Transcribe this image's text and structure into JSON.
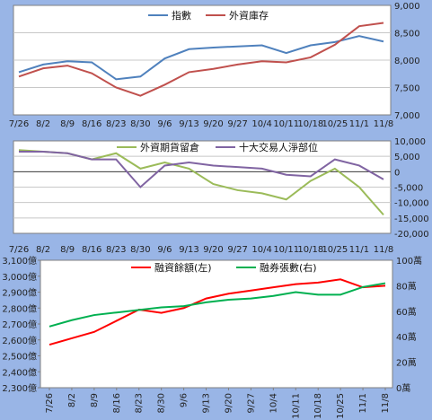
{
  "chart_data": [
    {
      "type": "line",
      "x": [
        "7/26",
        "8/2",
        "8/9",
        "8/16",
        "8/23",
        "8/30",
        "9/6",
        "9/13",
        "9/20",
        "9/27",
        "10/4",
        "10/11",
        "10/18",
        "10/25",
        "11/1",
        "11/8"
      ],
      "x_labels": [
        "7/26",
        "8/2",
        "8/9",
        "8/16",
        "8/23",
        "8/30",
        "9/6",
        "9/13",
        "9/20",
        "9/27",
        "10/4",
        "10/11",
        "10/18",
        "10/25",
        "11/1",
        "11/8"
      ],
      "y_ticks": [
        "7,000",
        "7,500",
        "8,000",
        "8,500",
        "9,000"
      ],
      "ylim": [
        7000,
        9000
      ],
      "legend_position": "top-center",
      "series": [
        {
          "name": "指數",
          "color": "#4f81bd",
          "values": [
            7780,
            7920,
            7980,
            7960,
            7650,
            7700,
            8030,
            8200,
            8230,
            8250,
            8270,
            8130,
            8270,
            8330,
            8440,
            8340
          ]
        },
        {
          "name": "外資庫存",
          "color": "#c0504d",
          "values": [
            7700,
            7850,
            7900,
            7760,
            7500,
            7350,
            7550,
            7780,
            7840,
            7920,
            7980,
            7960,
            8050,
            8280,
            8620,
            8680
          ]
        }
      ]
    },
    {
      "type": "line",
      "x": [
        "7/26",
        "8/2",
        "8/9",
        "8/16",
        "8/23",
        "8/30",
        "9/6",
        "9/13",
        "9/20",
        "9/27",
        "10/4",
        "10/11",
        "10/18",
        "10/25",
        "11/1",
        "11/8"
      ],
      "x_labels": [
        "7/26",
        "8/2",
        "8/9",
        "8/16",
        "8/23",
        "8/30",
        "9/6",
        "9/13",
        "9/20",
        "9/27",
        "10/4",
        "10/11",
        "10/18",
        "10/25",
        "11/1",
        "11/8"
      ],
      "y_ticks": [
        "10,000",
        "5,000",
        "0",
        "-5,000",
        "-10,000",
        "-15,000",
        "-20,000"
      ],
      "ylim": [
        -20000,
        10000
      ],
      "legend_position": "top-center",
      "series": [
        {
          "name": "外資期貨留倉",
          "color": "#9bbb59",
          "values": [
            7000,
            6500,
            6000,
            4000,
            6000,
            1000,
            3000,
            1000,
            -4000,
            -6000,
            -7000,
            -9000,
            -3000,
            1000,
            -5000,
            -14000
          ]
        },
        {
          "name": "十大交易人淨部位",
          "color": "#8064a2",
          "values": [
            6500,
            6500,
            6000,
            4000,
            4000,
            -5000,
            2000,
            3000,
            2000,
            1500,
            1000,
            -1000,
            -1500,
            4000,
            2000,
            -2500
          ]
        }
      ]
    },
    {
      "type": "line",
      "x": [
        "7/26",
        "8/2",
        "8/9",
        "8/16",
        "8/23",
        "8/30",
        "9/6",
        "9/13",
        "9/20",
        "9/27",
        "10/4",
        "10/11",
        "10/18",
        "10/25",
        "11/1",
        "11/8"
      ],
      "x_labels": [
        "7/26",
        "8/2",
        "8/9",
        "8/16",
        "8/23",
        "8/30",
        "9/6",
        "9/13",
        "9/20",
        "9/27",
        "10/4",
        "10/11",
        "10/18",
        "10/25",
        "11/1",
        "11/8"
      ],
      "y_left_ticks": [
        "2,300億",
        "2,400億",
        "2,500億",
        "2,600億",
        "2,700億",
        "2,800億",
        "2,900億",
        "3,000億",
        "3,100億"
      ],
      "y_right_ticks": [
        "0萬",
        "20萬",
        "40萬",
        "60萬",
        "80萬",
        "100萬"
      ],
      "ylim_left": [
        2300,
        3100
      ],
      "ylim_right": [
        0,
        100
      ],
      "legend_position": "top-center",
      "series": [
        {
          "name": "融資餘額(左)",
          "axis": "left",
          "color": "#ff0000",
          "values": [
            2570,
            2610,
            2650,
            2720,
            2790,
            2770,
            2800,
            2860,
            2890,
            2910,
            2930,
            2950,
            2960,
            2980,
            2930,
            2940
          ]
        },
        {
          "name": "融券張數(右)",
          "axis": "right",
          "color": "#00b050",
          "values": [
            48,
            53,
            57,
            59,
            61,
            63,
            64,
            67,
            69,
            70,
            72,
            75,
            73,
            73,
            79,
            82
          ]
        }
      ]
    }
  ]
}
